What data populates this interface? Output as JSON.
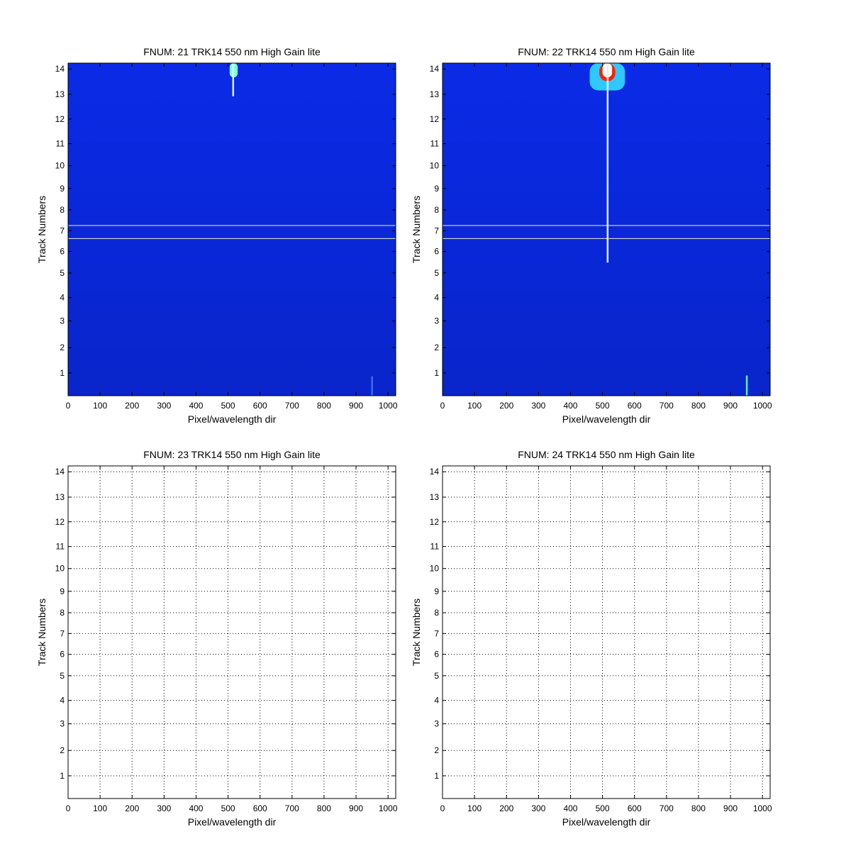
{
  "chart_data": [
    {
      "type": "heatmap",
      "title": "FNUM: 21 TRK14 550 nm High Gain lite",
      "x_label": "Pixel/wavelength dir",
      "y_label": "Track Numbers",
      "xlim": [
        0,
        1024
      ],
      "ylim": [
        0,
        512
      ],
      "xticks": [
        0,
        100,
        200,
        300,
        400,
        500,
        600,
        700,
        800,
        900,
        1000
      ],
      "yticks": [
        {
          "value": 35,
          "label": "1"
        },
        {
          "value": 74,
          "label": "2"
        },
        {
          "value": 115,
          "label": "3"
        },
        {
          "value": 151,
          "label": "4"
        },
        {
          "value": 189,
          "label": "5"
        },
        {
          "value": 222,
          "label": "6"
        },
        {
          "value": 254,
          "label": "7"
        },
        {
          "value": 286,
          "label": "8"
        },
        {
          "value": 319,
          "label": "9"
        },
        {
          "value": 354,
          "label": "10"
        },
        {
          "value": 388,
          "label": "11"
        },
        {
          "value": 426,
          "label": "12"
        },
        {
          "value": 464,
          "label": "13"
        },
        {
          "value": 503,
          "label": "14"
        }
      ],
      "grid": false,
      "background": "#0a2ae6",
      "spots": [
        {
          "x": [
            505,
            530
          ],
          "y": [
            490,
            512
          ],
          "color": "#7fffd0"
        }
      ],
      "traces": [
        {
          "x": 516,
          "y": [
            461,
            512
          ],
          "color": "#d8f4ff"
        },
        {
          "x": 950,
          "y": [
            0,
            30
          ],
          "color": "#3a6cf0"
        }
      ],
      "hlines": [
        262,
        242
      ],
      "hline_color": "#f0f0c8"
    },
    {
      "type": "heatmap",
      "title": "FNUM: 22 TRK14 550 nm High Gain lite",
      "x_label": "Pixel/wavelength dir",
      "y_label": "Track Numbers",
      "xlim": [
        0,
        1024
      ],
      "ylim": [
        0,
        512
      ],
      "xticks": [
        0,
        100,
        200,
        300,
        400,
        500,
        600,
        700,
        800,
        900,
        1000
      ],
      "yticks": [
        {
          "value": 35,
          "label": "1"
        },
        {
          "value": 74,
          "label": "2"
        },
        {
          "value": 115,
          "label": "3"
        },
        {
          "value": 151,
          "label": "4"
        },
        {
          "value": 189,
          "label": "5"
        },
        {
          "value": 222,
          "label": "6"
        },
        {
          "value": 254,
          "label": "7"
        },
        {
          "value": 286,
          "label": "8"
        },
        {
          "value": 319,
          "label": "9"
        },
        {
          "value": 354,
          "label": "10"
        },
        {
          "value": 388,
          "label": "11"
        },
        {
          "value": 426,
          "label": "12"
        },
        {
          "value": 464,
          "label": "13"
        },
        {
          "value": 503,
          "label": "14"
        }
      ],
      "grid": false,
      "background": "#0a2ae6",
      "spots": [
        {
          "x": [
            460,
            570
          ],
          "y": [
            470,
            512
          ],
          "color": "#30c8ff"
        },
        {
          "x": [
            490,
            540
          ],
          "y": [
            484,
            512
          ],
          "color": "#ff2000"
        },
        {
          "x": [
            500,
            530
          ],
          "y": [
            490,
            512
          ],
          "color": "#ffffff"
        }
      ],
      "traces": [
        {
          "x": 516,
          "y": [
            205,
            512
          ],
          "color": "#d8f4ff"
        },
        {
          "x": 951,
          "y": [
            0,
            31
          ],
          "color": "#60e8ff"
        }
      ],
      "hlines": [
        262,
        242
      ],
      "hline_color": "#f0f0c8"
    },
    {
      "type": "heatmap",
      "title": "FNUM: 23 TRK14 550 nm High Gain lite",
      "x_label": "Pixel/wavelength dir",
      "y_label": "Track Numbers",
      "xlim": [
        0,
        1024
      ],
      "ylim": [
        0,
        512
      ],
      "xticks": [
        0,
        100,
        200,
        300,
        400,
        500,
        600,
        700,
        800,
        900,
        1000
      ],
      "yticks": [
        {
          "value": 35,
          "label": "1"
        },
        {
          "value": 74,
          "label": "2"
        },
        {
          "value": 115,
          "label": "3"
        },
        {
          "value": 151,
          "label": "4"
        },
        {
          "value": 189,
          "label": "5"
        },
        {
          "value": 222,
          "label": "6"
        },
        {
          "value": 254,
          "label": "7"
        },
        {
          "value": 286,
          "label": "8"
        },
        {
          "value": 319,
          "label": "9"
        },
        {
          "value": 354,
          "label": "10"
        },
        {
          "value": 388,
          "label": "11"
        },
        {
          "value": 426,
          "label": "12"
        },
        {
          "value": 464,
          "label": "13"
        },
        {
          "value": 503,
          "label": "14"
        }
      ],
      "grid": true
    },
    {
      "type": "heatmap",
      "title": "FNUM: 24 TRK14 550 nm High Gain lite",
      "x_label": "Pixel/wavelength dir",
      "y_label": "Track Numbers",
      "xlim": [
        0,
        1024
      ],
      "ylim": [
        0,
        512
      ],
      "xticks": [
        0,
        100,
        200,
        300,
        400,
        500,
        600,
        700,
        800,
        900,
        1000
      ],
      "yticks": [
        {
          "value": 35,
          "label": "1"
        },
        {
          "value": 74,
          "label": "2"
        },
        {
          "value": 115,
          "label": "3"
        },
        {
          "value": 151,
          "label": "4"
        },
        {
          "value": 189,
          "label": "5"
        },
        {
          "value": 222,
          "label": "6"
        },
        {
          "value": 254,
          "label": "7"
        },
        {
          "value": 286,
          "label": "8"
        },
        {
          "value": 319,
          "label": "9"
        },
        {
          "value": 354,
          "label": "10"
        },
        {
          "value": 388,
          "label": "11"
        },
        {
          "value": 426,
          "label": "12"
        },
        {
          "value": 464,
          "label": "13"
        },
        {
          "value": 503,
          "label": "14"
        }
      ],
      "grid": true
    }
  ]
}
